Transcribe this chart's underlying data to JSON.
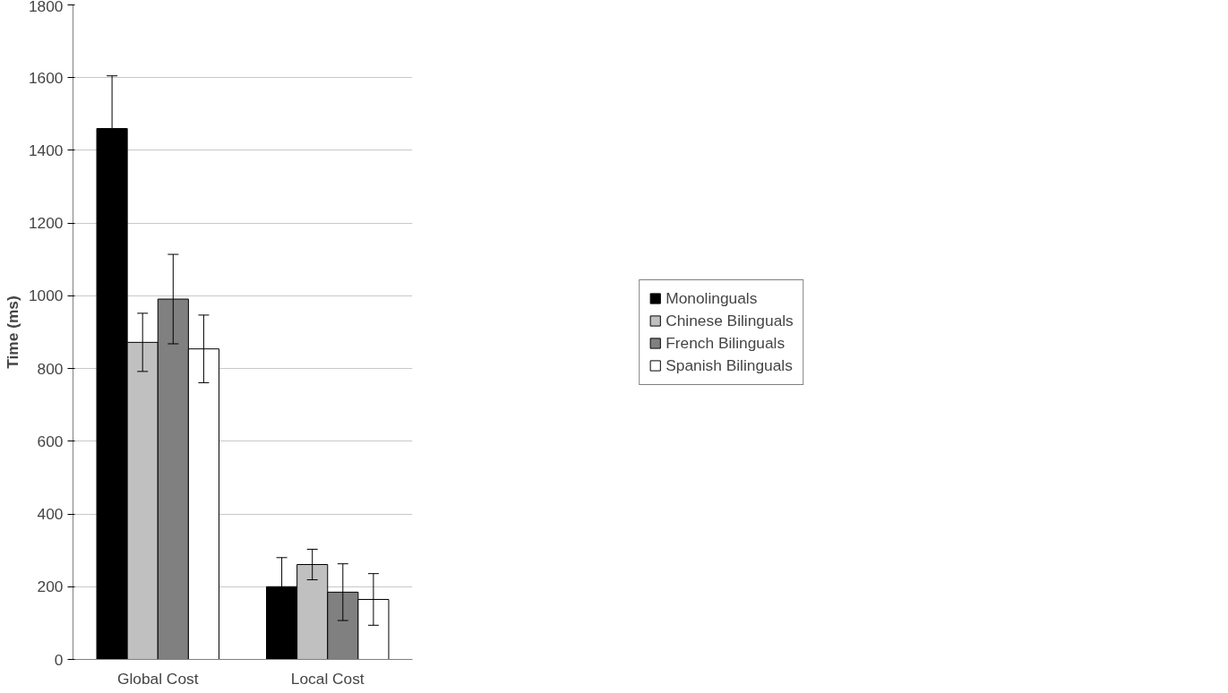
{
  "chart_data": {
    "type": "bar",
    "ylabel": "Time (ms)",
    "categories": [
      "Global Cost",
      "Local Cost"
    ],
    "series": [
      {
        "name": "Monolinguals",
        "color": "#000000",
        "values": [
          1460,
          200
        ],
        "errors": [
          145,
          80
        ]
      },
      {
        "name": "Chinese Bilinguals",
        "color": "#c0c0c0",
        "values": [
          872,
          261
        ],
        "errors": [
          80,
          42
        ]
      },
      {
        "name": "French Bilinguals",
        "color": "#808080",
        "values": [
          991,
          185
        ],
        "errors": [
          123,
          78
        ]
      },
      {
        "name": "Spanish Bilinguals",
        "color": "#ffffff",
        "values": [
          854,
          165
        ],
        "errors": [
          93,
          71
        ]
      }
    ],
    "ylim": [
      0,
      1800
    ],
    "yticks": [
      0,
      200,
      400,
      600,
      800,
      1000,
      1200,
      1400,
      1600,
      1800
    ],
    "grid": "y",
    "legend": "right"
  }
}
